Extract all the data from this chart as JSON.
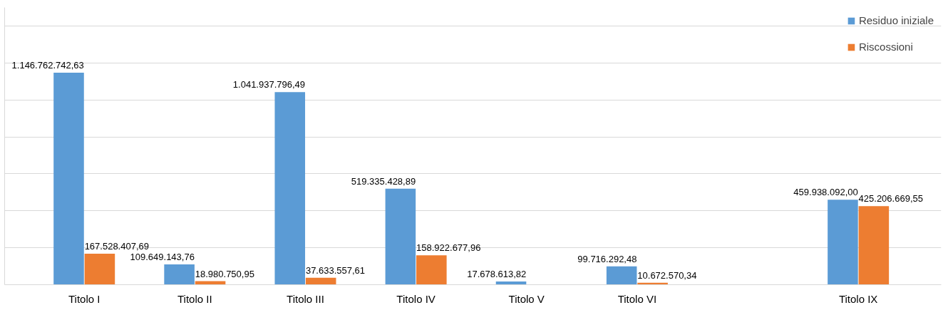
{
  "chart_data": {
    "type": "bar",
    "categories": [
      "Titolo I",
      "Titolo II",
      "Titolo III",
      "Titolo IV",
      "Titolo V",
      "Titolo VI",
      null,
      "Titolo IX"
    ],
    "series": [
      {
        "name": "Residuo iniziale",
        "color": "#5b9bd5",
        "values": [
          1146762742.63,
          109649143.76,
          1041937796.49,
          519335428.89,
          17678613.82,
          99716292.48,
          null,
          459938092.0
        ],
        "value_labels": [
          "1.146.762.742,63",
          "109.649.143,76",
          "1.041.937.796,49",
          "519.335.428,89",
          "17.678.613,82",
          "99.716.292,48",
          null,
          "459.938.092,00"
        ]
      },
      {
        "name": "Riscossioni",
        "color": "#ed7d31",
        "values": [
          167528407.69,
          18980750.95,
          37633557.61,
          158922677.96,
          null,
          10672570.34,
          null,
          425206669.55
        ],
        "value_labels": [
          "167.528.407,69",
          "18.980.750,95",
          "37.633.557,61",
          "158.922.677,96",
          null,
          "10.672.570,34",
          null,
          "425.206.669,55"
        ]
      }
    ],
    "ylim": [
      0,
      1500000000
    ],
    "yticks": [
      {
        "value": 0,
        "label": null
      },
      {
        "value": 200000000,
        "label": null
      },
      {
        "value": 400000000,
        "label": null
      },
      {
        "value": 600000000,
        "label": null
      },
      {
        "value": 800000000,
        "label": null
      },
      {
        "value": 1000000000,
        "label": null
      },
      {
        "value": 1200000000,
        "label": null
      },
      {
        "value": 1400000000,
        "label": null
      }
    ],
    "tick_labels": "x",
    "grid": "y",
    "legend": "top right"
  }
}
